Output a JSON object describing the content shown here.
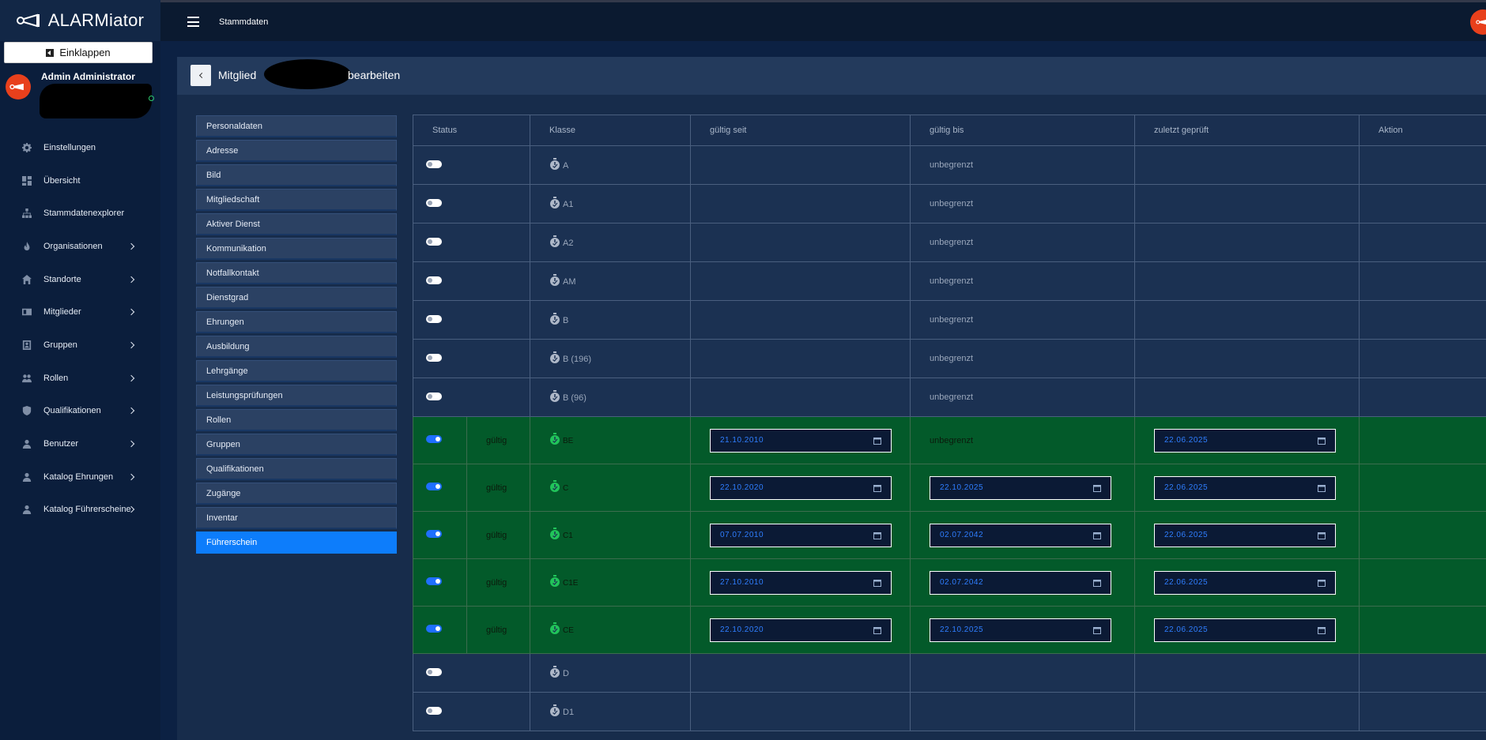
{
  "app": {
    "name": "ALARMiator",
    "collapse_label": "Einklappen",
    "user_name": "Admin Administrator",
    "topbar_title": "Stammdaten"
  },
  "nav": [
    {
      "label": "Einstellungen",
      "icon": "gear-icon",
      "chevron": false
    },
    {
      "label": "Übersicht",
      "icon": "dashboard-icon",
      "chevron": false
    },
    {
      "label": "Stammdatenexplorer",
      "icon": "sitemap-icon",
      "chevron": false
    },
    {
      "label": "Organisationen",
      "icon": "flame-icon",
      "chevron": true
    },
    {
      "label": "Standorte",
      "icon": "home-icon",
      "chevron": true
    },
    {
      "label": "Mitglieder",
      "icon": "id-card-icon",
      "chevron": true
    },
    {
      "label": "Gruppen",
      "icon": "user-box-icon",
      "chevron": true
    },
    {
      "label": "Rollen",
      "icon": "users-icon",
      "chevron": true
    },
    {
      "label": "Qualifikationen",
      "icon": "shield-icon",
      "chevron": true
    },
    {
      "label": "Benutzer",
      "icon": "user-icon",
      "chevron": true
    },
    {
      "label": "Katalog Ehrungen",
      "icon": "user-icon",
      "chevron": true
    },
    {
      "label": "Katalog Führerscheine",
      "icon": "user-icon",
      "chevron": true
    }
  ],
  "page": {
    "title_prefix": "Mitglied",
    "title_suffix": "bearbeiten"
  },
  "tabs": [
    {
      "label": "Personaldaten",
      "active": false
    },
    {
      "label": "Adresse",
      "active": false
    },
    {
      "label": "Bild",
      "active": false
    },
    {
      "label": "Mitgliedschaft",
      "active": false
    },
    {
      "label": "Aktiver Dienst",
      "active": false
    },
    {
      "label": "Kommunikation",
      "active": false
    },
    {
      "label": "Notfallkontakt",
      "active": false
    },
    {
      "label": "Dienstgrad",
      "active": false
    },
    {
      "label": "Ehrungen",
      "active": false
    },
    {
      "label": "Ausbildung",
      "active": false
    },
    {
      "label": "Lehrgänge",
      "active": false
    },
    {
      "label": "Leistungsprüfungen",
      "active": false
    },
    {
      "label": "Rollen",
      "active": false
    },
    {
      "label": "Gruppen",
      "active": false
    },
    {
      "label": "Qualifikationen",
      "active": false
    },
    {
      "label": "Zugänge",
      "active": false
    },
    {
      "label": "Inventar",
      "active": false
    },
    {
      "label": "Führerschein",
      "active": true
    }
  ],
  "table": {
    "headers": [
      "Status",
      "Klasse",
      "gültig seit",
      "gültig bis",
      "zuletzt geprüft",
      "Aktion"
    ],
    "rows": [
      {
        "on": false,
        "valid": "",
        "klasse": "A",
        "seit": "",
        "bis_text": "unbegrenzt",
        "bis": "",
        "geprueft": ""
      },
      {
        "on": false,
        "valid": "",
        "klasse": "A1",
        "seit": "",
        "bis_text": "unbegrenzt",
        "bis": "",
        "geprueft": ""
      },
      {
        "on": false,
        "valid": "",
        "klasse": "A2",
        "seit": "",
        "bis_text": "unbegrenzt",
        "bis": "",
        "geprueft": ""
      },
      {
        "on": false,
        "valid": "",
        "klasse": "AM",
        "seit": "",
        "bis_text": "unbegrenzt",
        "bis": "",
        "geprueft": ""
      },
      {
        "on": false,
        "valid": "",
        "klasse": "B",
        "seit": "",
        "bis_text": "unbegrenzt",
        "bis": "",
        "geprueft": ""
      },
      {
        "on": false,
        "valid": "",
        "klasse": "B (196)",
        "seit": "",
        "bis_text": "unbegrenzt",
        "bis": "",
        "geprueft": ""
      },
      {
        "on": false,
        "valid": "",
        "klasse": "B (96)",
        "seit": "",
        "bis_text": "unbegrenzt",
        "bis": "",
        "geprueft": ""
      },
      {
        "on": true,
        "valid": "gültig",
        "klasse": "BE",
        "seit": "21.10.2010",
        "bis_text": "unbegrenzt",
        "bis": "",
        "geprueft": "22.06.2025"
      },
      {
        "on": true,
        "valid": "gültig",
        "klasse": "C",
        "seit": "22.10.2020",
        "bis_text": "",
        "bis": "22.10.2025",
        "geprueft": "22.06.2025"
      },
      {
        "on": true,
        "valid": "gültig",
        "klasse": "C1",
        "seit": "07.07.2010",
        "bis_text": "",
        "bis": "02.07.2042",
        "geprueft": "22.06.2025"
      },
      {
        "on": true,
        "valid": "gültig",
        "klasse": "C1E",
        "seit": "27.10.2010",
        "bis_text": "",
        "bis": "02.07.2042",
        "geprueft": "22.06.2025"
      },
      {
        "on": true,
        "valid": "gültig",
        "klasse": "CE",
        "seit": "22.10.2020",
        "bis_text": "",
        "bis": "22.10.2025",
        "geprueft": "22.06.2025"
      },
      {
        "on": false,
        "valid": "",
        "klasse": "D",
        "seit": "",
        "bis_text": "",
        "bis": "",
        "geprueft": ""
      },
      {
        "on": false,
        "valid": "",
        "klasse": "D1",
        "seit": "",
        "bis_text": "",
        "bis": "",
        "geprueft": ""
      }
    ]
  },
  "colors": {
    "accent": "#0d7dfb",
    "valid_row": "#035a2a",
    "avatar": "#e8401c",
    "date_text": "#2f7eff"
  }
}
